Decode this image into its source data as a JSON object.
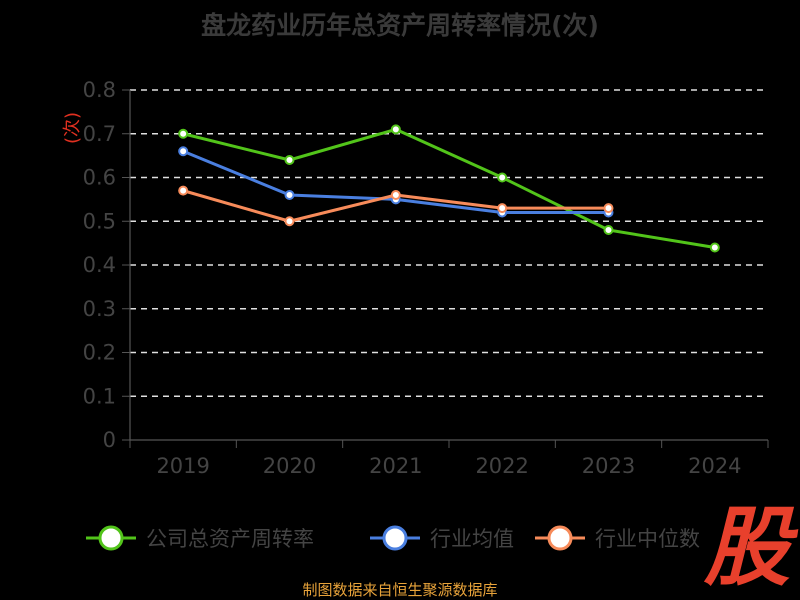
{
  "chart_data": {
    "type": "line",
    "title": "盘龙药业历年总资产周转率情况(次)",
    "ylabel": "(次)",
    "categories": [
      "2019",
      "2020",
      "2021",
      "2022",
      "2023",
      "2024"
    ],
    "yticks": [
      "0",
      "0.1",
      "0.2",
      "0.3",
      "0.4",
      "0.5",
      "0.6",
      "0.7",
      "0.8"
    ],
    "ylim": [
      0,
      0.8
    ],
    "grid": true,
    "legend_position": "bottom",
    "series": [
      {
        "name": "公司总资产周转率",
        "color": "#52c41a",
        "values": [
          0.7,
          0.64,
          0.71,
          0.6,
          0.48,
          0.44
        ]
      },
      {
        "name": "行业均值",
        "color": "#4a7fe0",
        "values": [
          0.66,
          0.56,
          0.55,
          0.52,
          0.52,
          null
        ]
      },
      {
        "name": "行业中位数",
        "color": "#f78b5a",
        "values": [
          0.57,
          0.5,
          0.56,
          0.53,
          0.53,
          null
        ]
      }
    ]
  },
  "source": "制图数据来自恒生聚源数据库",
  "watermark": "股"
}
